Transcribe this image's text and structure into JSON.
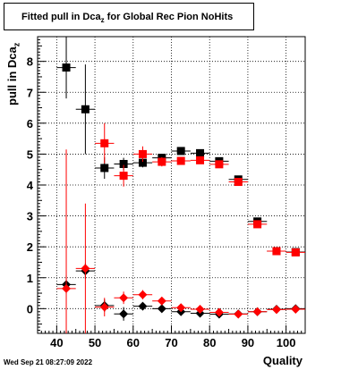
{
  "title": {
    "main": "Fitted pull in Dca",
    "subscript": "z",
    "rest": " for Global Rec Pion NoHits"
  },
  "axes": {
    "ylabel_main": "pull in Dca",
    "ylabel_sub": "z",
    "xlabel": "Quality"
  },
  "timestamp": "Wed Sep 21 08:27:09 2022",
  "colors": {
    "series_black": "#000000",
    "series_red": "#ff0000",
    "grid": "#000000"
  },
  "chart_data": {
    "type": "scatter",
    "xlim": [
      35,
      105
    ],
    "ylim": [
      -0.8,
      8.8
    ],
    "x_ticks": [
      40,
      50,
      60,
      70,
      80,
      90,
      100
    ],
    "y_ticks": [
      0,
      1,
      2,
      3,
      4,
      5,
      6,
      7,
      8
    ],
    "grid": true,
    "series": [
      {
        "color": "#000000",
        "marker": "square",
        "points": [
          {
            "x": 42.5,
            "y": 7.8,
            "yerr": 1.0
          },
          {
            "x": 47.5,
            "y": 6.45,
            "yerr": 1.45
          },
          {
            "x": 52.5,
            "y": 4.55,
            "yerr": 0.35
          },
          {
            "x": 57.5,
            "y": 4.68,
            "yerr": 0.2
          },
          {
            "x": 62.5,
            "y": 4.72,
            "yerr": 0.15
          },
          {
            "x": 67.5,
            "y": 4.88,
            "yerr": 0.12
          },
          {
            "x": 72.5,
            "y": 5.1,
            "yerr": 0.1
          },
          {
            "x": 77.5,
            "y": 5.03,
            "yerr": 0.08
          },
          {
            "x": 82.5,
            "y": 4.77,
            "yerr": 0.07
          },
          {
            "x": 87.5,
            "y": 4.18,
            "yerr": 0.06
          },
          {
            "x": 92.5,
            "y": 2.82,
            "yerr": 0.05
          },
          {
            "x": 97.5,
            "y": 1.86,
            "yerr": 0.04
          },
          {
            "x": 102.5,
            "y": 1.83,
            "yerr": 0.04
          }
        ]
      },
      {
        "color": "#ff0000",
        "marker": "square",
        "points": [
          {
            "x": 52.5,
            "y": 5.35,
            "yerr": 0.65
          },
          {
            "x": 57.5,
            "y": 4.3,
            "yerr": 0.35
          },
          {
            "x": 62.5,
            "y": 5.0,
            "yerr": 0.25
          },
          {
            "x": 67.5,
            "y": 4.75,
            "yerr": 0.15
          },
          {
            "x": 72.5,
            "y": 4.78,
            "yerr": 0.1
          },
          {
            "x": 77.5,
            "y": 4.8,
            "yerr": 0.08
          },
          {
            "x": 82.5,
            "y": 4.67,
            "yerr": 0.07
          },
          {
            "x": 87.5,
            "y": 4.1,
            "yerr": 0.06
          },
          {
            "x": 92.5,
            "y": 2.73,
            "yerr": 0.05
          },
          {
            "x": 97.5,
            "y": 1.86,
            "yerr": 0.04
          },
          {
            "x": 102.5,
            "y": 1.82,
            "yerr": 0.04
          }
        ]
      },
      {
        "color": "#000000",
        "marker": "diamond",
        "points": [
          {
            "x": 42.5,
            "y": 0.78,
            "yerr": 0.3
          },
          {
            "x": 47.5,
            "y": 1.22,
            "yerr": 0.25
          },
          {
            "x": 52.5,
            "y": 0.1,
            "yerr": 0.2
          },
          {
            "x": 57.5,
            "y": -0.17,
            "yerr": 0.22
          },
          {
            "x": 62.5,
            "y": 0.08,
            "yerr": 0.12
          },
          {
            "x": 67.5,
            "y": 0.0,
            "yerr": 0.06
          },
          {
            "x": 72.5,
            "y": -0.1,
            "yerr": 0.05
          },
          {
            "x": 77.5,
            "y": -0.15,
            "yerr": 0.04
          },
          {
            "x": 82.5,
            "y": -0.18,
            "yerr": 0.04
          },
          {
            "x": 87.5,
            "y": -0.17,
            "yerr": 0.03
          },
          {
            "x": 92.5,
            "y": -0.1,
            "yerr": 0.03
          },
          {
            "x": 97.5,
            "y": -0.02,
            "yerr": 0.03
          },
          {
            "x": 102.5,
            "y": 0.0,
            "yerr": 0.03
          }
        ]
      },
      {
        "color": "#ff0000",
        "marker": "diamond",
        "points": [
          {
            "x": 42.5,
            "y": 0.65,
            "yerr": 4.5
          },
          {
            "x": 47.5,
            "y": 1.3,
            "yerr": 2.1
          },
          {
            "x": 52.5,
            "y": 0.05,
            "yerr": 0.3
          },
          {
            "x": 57.5,
            "y": 0.35,
            "yerr": 0.2
          },
          {
            "x": 62.5,
            "y": 0.45,
            "yerr": 0.15
          },
          {
            "x": 67.5,
            "y": 0.25,
            "yerr": 0.1
          },
          {
            "x": 72.5,
            "y": 0.03,
            "yerr": 0.08
          },
          {
            "x": 77.5,
            "y": -0.02,
            "yerr": 0.06
          },
          {
            "x": 82.5,
            "y": -0.12,
            "yerr": 0.05
          },
          {
            "x": 87.5,
            "y": -0.18,
            "yerr": 0.04
          },
          {
            "x": 92.5,
            "y": -0.1,
            "yerr": 0.03
          },
          {
            "x": 97.5,
            "y": -0.03,
            "yerr": 0.03
          },
          {
            "x": 102.5,
            "y": -0.02,
            "yerr": 0.03
          }
        ]
      }
    ]
  }
}
